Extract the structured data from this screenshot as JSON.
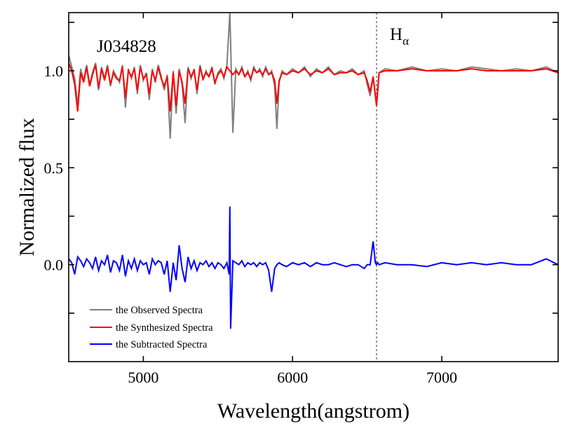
{
  "chart_data": {
    "type": "line",
    "xlabel": "Wavelength(angstrom)",
    "ylabel": "Normalized flux",
    "xlim": [
      4500,
      7780
    ],
    "ylim": [
      -0.5,
      1.3
    ],
    "x_ticks": [
      5000,
      6000,
      7000
    ],
    "x_tick_labels": [
      "5000",
      "6000",
      "7000"
    ],
    "y_ticks": [
      0.0,
      0.5,
      1.0
    ],
    "y_tick_labels": [
      "0.0",
      "0.5",
      "1.0"
    ],
    "grid": false,
    "legend_position": "bottom-left",
    "annotations": {
      "object_label": "J034828",
      "line_label_main": "H",
      "line_label_sub": "α",
      "line_wavelength": 6563
    },
    "series": [
      {
        "name": "the Observed Spectra",
        "color": "#7f7f7f",
        "x": [
          4500,
          4520,
          4540,
          4560,
          4580,
          4600,
          4620,
          4640,
          4660,
          4680,
          4700,
          4720,
          4740,
          4760,
          4780,
          4800,
          4820,
          4840,
          4860,
          4880,
          4900,
          4920,
          4940,
          4960,
          4980,
          5000,
          5020,
          5040,
          5060,
          5080,
          5100,
          5120,
          5140,
          5160,
          5180,
          5200,
          5220,
          5240,
          5260,
          5280,
          5300,
          5320,
          5340,
          5360,
          5380,
          5400,
          5420,
          5440,
          5460,
          5480,
          5500,
          5520,
          5540,
          5560,
          5580,
          5600,
          5620,
          5640,
          5660,
          5680,
          5700,
          5720,
          5740,
          5760,
          5780,
          5800,
          5820,
          5840,
          5860,
          5880,
          5895,
          5910,
          5930,
          5960,
          6000,
          6040,
          6080,
          6120,
          6160,
          6200,
          6240,
          6280,
          6320,
          6360,
          6400,
          6440,
          6480,
          6500,
          6520,
          6540,
          6563,
          6580,
          6620,
          6700,
          6800,
          6900,
          7000,
          7100,
          7200,
          7300,
          7400,
          7500,
          7600,
          7700,
          7780
        ],
        "values": [
          1.08,
          1.02,
          0.96,
          0.82,
          1.01,
          0.95,
          1.03,
          0.93,
          0.99,
          1.04,
          0.9,
          1.02,
          0.96,
          1.03,
          0.92,
          1.0,
          0.97,
          0.94,
          1.03,
          0.81,
          1.01,
          0.96,
          1.02,
          0.88,
          1.03,
          0.95,
          0.99,
          0.85,
          1.01,
          0.94,
          1.03,
          0.97,
          0.9,
          0.98,
          0.65,
          1.0,
          0.78,
          1.01,
          0.93,
          0.73,
          1.02,
          0.96,
          1.01,
          0.88,
          1.03,
          0.95,
          1.0,
          0.97,
          1.02,
          0.93,
          0.99,
          1.01,
          0.96,
          1.03,
          1.3,
          0.68,
          1.01,
          0.98,
          1.02,
          0.97,
          1.0,
          0.95,
          1.02,
          0.99,
          1.01,
          0.97,
          1.02,
          0.98,
          1.0,
          0.92,
          0.7,
          0.94,
          1.0,
          0.98,
          1.01,
          0.99,
          1.02,
          0.97,
          1.01,
          0.99,
          1.02,
          0.98,
          1.0,
          0.99,
          1.01,
          0.98,
          1.0,
          0.93,
          0.87,
          0.97,
          0.82,
          0.99,
          1.01,
          1.0,
          1.02,
          1.0,
          1.01,
          1.0,
          1.02,
          1.01,
          1.0,
          1.01,
          1.0,
          1.02,
          0.99
        ]
      },
      {
        "name": "the Synthesized Spectra",
        "color": "#ff0000",
        "x": [
          4500,
          4520,
          4540,
          4560,
          4580,
          4600,
          4620,
          4640,
          4660,
          4680,
          4700,
          4720,
          4740,
          4760,
          4780,
          4800,
          4820,
          4840,
          4860,
          4880,
          4900,
          4920,
          4940,
          4960,
          4980,
          5000,
          5020,
          5040,
          5060,
          5080,
          5100,
          5120,
          5140,
          5160,
          5180,
          5200,
          5220,
          5240,
          5260,
          5280,
          5300,
          5320,
          5340,
          5360,
          5380,
          5400,
          5420,
          5440,
          5460,
          5480,
          5500,
          5520,
          5540,
          5560,
          5580,
          5600,
          5620,
          5640,
          5660,
          5680,
          5700,
          5720,
          5740,
          5760,
          5780,
          5800,
          5820,
          5840,
          5860,
          5880,
          5895,
          5910,
          5930,
          5960,
          6000,
          6040,
          6080,
          6120,
          6160,
          6200,
          6240,
          6280,
          6320,
          6360,
          6400,
          6440,
          6480,
          6500,
          6520,
          6540,
          6563,
          6580,
          6620,
          6700,
          6800,
          6900,
          7000,
          7100,
          7200,
          7300,
          7400,
          7500,
          7600,
          7700,
          7780
        ],
        "values": [
          1.04,
          1.0,
          0.93,
          0.79,
          0.99,
          0.94,
          1.02,
          0.92,
          0.98,
          1.03,
          0.91,
          1.01,
          0.95,
          1.02,
          0.93,
          0.99,
          0.96,
          0.95,
          1.02,
          0.86,
          1.0,
          0.97,
          1.01,
          0.9,
          1.02,
          0.96,
          0.98,
          0.88,
          1.0,
          0.95,
          1.02,
          0.96,
          0.92,
          0.97,
          0.79,
          0.99,
          0.82,
          1.0,
          0.94,
          0.83,
          1.01,
          0.97,
          1.0,
          0.9,
          1.02,
          0.96,
          0.99,
          0.97,
          1.01,
          0.94,
          0.98,
          1.0,
          0.97,
          1.02,
          1.0,
          0.98,
          1.0,
          0.98,
          1.01,
          0.97,
          0.99,
          0.96,
          1.01,
          0.99,
          1.0,
          0.98,
          1.01,
          0.98,
          0.99,
          0.95,
          0.83,
          0.95,
          0.99,
          0.98,
          1.0,
          0.99,
          1.01,
          0.98,
          1.0,
          0.99,
          1.01,
          0.98,
          0.99,
          0.99,
          1.0,
          0.98,
          0.99,
          0.95,
          0.89,
          0.97,
          0.82,
          0.99,
          1.0,
          1.0,
          1.01,
          1.0,
          1.0,
          1.0,
          1.01,
          1.0,
          1.0,
          1.0,
          1.0,
          1.01,
          0.99
        ]
      },
      {
        "name": "the Subtracted Spectra",
        "color": "#0000ff",
        "x": [
          4500,
          4520,
          4540,
          4560,
          4580,
          4600,
          4620,
          4640,
          4660,
          4680,
          4700,
          4720,
          4740,
          4760,
          4780,
          4800,
          4820,
          4840,
          4860,
          4880,
          4900,
          4920,
          4940,
          4960,
          4980,
          5000,
          5020,
          5040,
          5060,
          5080,
          5100,
          5120,
          5140,
          5160,
          5180,
          5200,
          5220,
          5240,
          5260,
          5280,
          5300,
          5320,
          5340,
          5360,
          5380,
          5400,
          5420,
          5440,
          5460,
          5480,
          5500,
          5520,
          5540,
          5560,
          5575,
          5580,
          5585,
          5600,
          5620,
          5640,
          5660,
          5680,
          5700,
          5720,
          5740,
          5760,
          5780,
          5800,
          5820,
          5840,
          5860,
          5880,
          5895,
          5910,
          5930,
          5960,
          6000,
          6040,
          6080,
          6120,
          6160,
          6200,
          6240,
          6280,
          6320,
          6360,
          6400,
          6440,
          6480,
          6500,
          6520,
          6540,
          6555,
          6563,
          6570,
          6580,
          6620,
          6700,
          6800,
          6900,
          7000,
          7100,
          7200,
          7300,
          7400,
          7500,
          7600,
          7700,
          7780
        ],
        "values": [
          0.03,
          0.01,
          -0.05,
          0.04,
          0.02,
          -0.01,
          0.03,
          0.01,
          -0.02,
          0.04,
          -0.03,
          0.02,
          0.0,
          0.05,
          -0.04,
          0.02,
          0.01,
          -0.03,
          0.05,
          -0.06,
          0.02,
          -0.02,
          0.03,
          -0.03,
          0.02,
          0.0,
          0.01,
          -0.05,
          0.03,
          0.0,
          0.02,
          0.01,
          -0.05,
          0.02,
          -0.14,
          0.01,
          -0.08,
          0.1,
          -0.02,
          -0.09,
          0.04,
          -0.02,
          0.02,
          -0.03,
          0.01,
          0.0,
          0.02,
          -0.01,
          0.01,
          -0.02,
          0.01,
          0.0,
          -0.02,
          0.01,
          -0.05,
          0.3,
          -0.33,
          0.02,
          0.01,
          0.0,
          0.02,
          -0.01,
          0.01,
          0.0,
          0.01,
          -0.01,
          0.01,
          0.0,
          0.01,
          -0.03,
          -0.14,
          -0.02,
          0.0,
          0.01,
          0.0,
          -0.01,
          0.01,
          0.0,
          0.01,
          -0.01,
          0.01,
          0.0,
          0.0,
          0.01,
          0.0,
          -0.01,
          0.0,
          0.0,
          -0.02,
          0.0,
          0.0,
          0.12,
          0.01,
          0.0,
          0.01,
          0.0,
          0.01,
          0.0,
          0.0,
          -0.01,
          0.01,
          0.0,
          0.01,
          0.0,
          0.01,
          0.0,
          0.0,
          0.03,
          0.0
        ]
      }
    ]
  }
}
